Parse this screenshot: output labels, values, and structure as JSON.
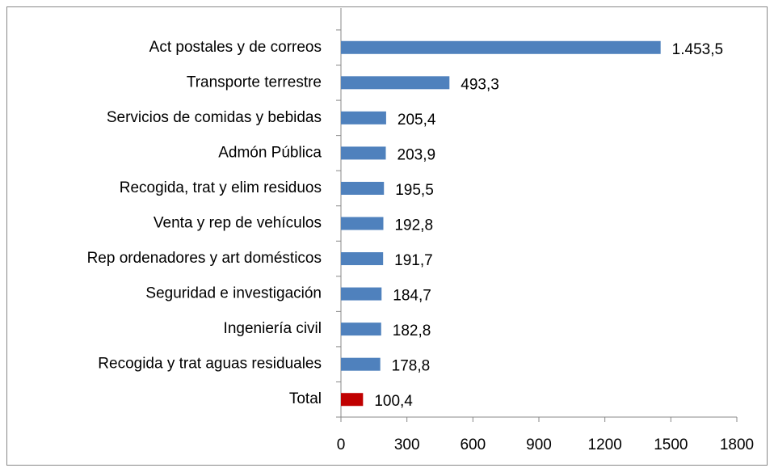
{
  "chart_data": {
    "type": "barh",
    "categories": [
      "Act postales y de correos",
      "Transporte terrestre ",
      "Servicios de comidas y bebidas",
      "Admón Pública ",
      "Recogida, trat y elim residuos",
      "Venta y rep de vehículos ",
      "Rep ordenadores y art domésticos",
      "Seguridad e investigación",
      "Ingeniería civil",
      "Recogida y trat aguas residuales",
      "Total"
    ],
    "values": [
      1453.5,
      493.3,
      205.4,
      203.9,
      195.5,
      192.8,
      191.7,
      184.7,
      182.8,
      178.8,
      100.4
    ],
    "value_labels": [
      "1.453,5",
      "493,3",
      "205,4",
      "203,9",
      "195,5",
      "192,8",
      "191,7",
      "184,7",
      "182,8",
      "178,8",
      "100,4"
    ],
    "colors": [
      "#4f81bd",
      "#4f81bd",
      "#4f81bd",
      "#4f81bd",
      "#4f81bd",
      "#4f81bd",
      "#4f81bd",
      "#4f81bd",
      "#4f81bd",
      "#4f81bd",
      "#c00000"
    ],
    "xlim": [
      0,
      1800
    ],
    "xticks": [
      0,
      300,
      600,
      900,
      1200,
      1500,
      1800
    ],
    "grid": false
  }
}
